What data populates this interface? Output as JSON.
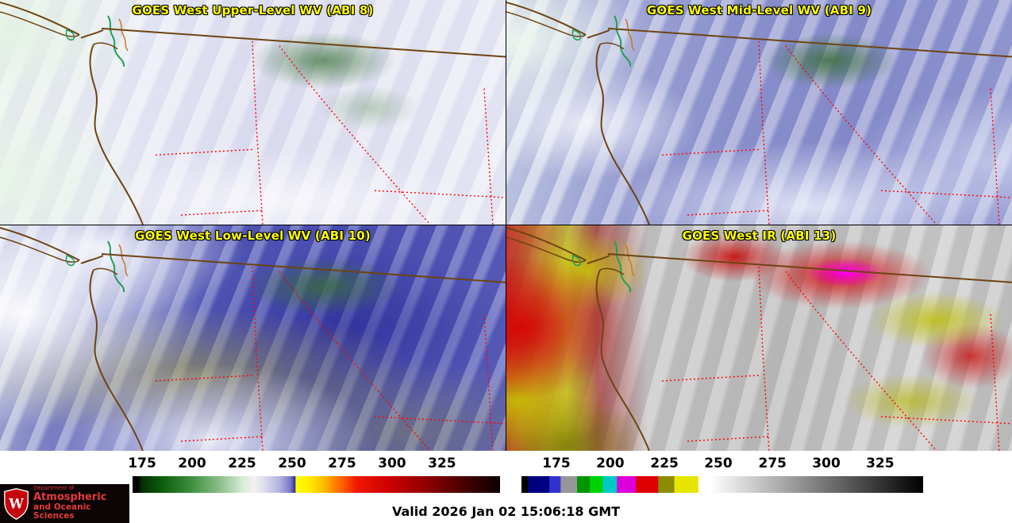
{
  "panels": [
    {
      "title": "GOES West Upper-Level WV (ABI 8)"
    },
    {
      "title": "GOES West Mid-Level WV (ABI 9)"
    },
    {
      "title": "GOES West Low-Level WV (ABI 10)"
    },
    {
      "title": "GOES West IR (ABI 13)"
    }
  ],
  "colors": {
    "panel_title": "#ffff00",
    "coastline": "#6e4412",
    "state_border": "#ff0000",
    "water_detail": "#1f9e5a",
    "logo_background": "#0d0406",
    "logo_text": "#e23b3b",
    "crest_red": "#c5050c"
  },
  "colorbars": {
    "wv": {
      "ticks": [
        {
          "label": "175",
          "pos": 2.6
        },
        {
          "label": "200",
          "pos": 16.2
        },
        {
          "label": "225",
          "pos": 29.8
        },
        {
          "label": "250",
          "pos": 43.4
        },
        {
          "label": "275",
          "pos": 57.0
        },
        {
          "label": "300",
          "pos": 70.6
        },
        {
          "label": "325",
          "pos": 84.2
        }
      ],
      "stops": [
        {
          "p": 0,
          "c": "#000000"
        },
        {
          "p": 1.5,
          "c": "#000000"
        },
        {
          "p": 2.5,
          "c": "#053005"
        },
        {
          "p": 8,
          "c": "#0d5c0d"
        },
        {
          "p": 16,
          "c": "#3f8f3f"
        },
        {
          "p": 24,
          "c": "#8fc08f"
        },
        {
          "p": 30,
          "c": "#d8ecd8"
        },
        {
          "p": 33,
          "c": "#f2f2f2"
        },
        {
          "p": 36,
          "c": "#dcdcee"
        },
        {
          "p": 40,
          "c": "#b2b2de"
        },
        {
          "p": 43,
          "c": "#7878c8"
        },
        {
          "p": 44.3,
          "c": "#2a2a96"
        },
        {
          "p": 44.4,
          "c": "#ffff00"
        },
        {
          "p": 49,
          "c": "#ffe400"
        },
        {
          "p": 53,
          "c": "#ffaa00"
        },
        {
          "p": 57,
          "c": "#ff5f00"
        },
        {
          "p": 61,
          "c": "#f11800"
        },
        {
          "p": 70,
          "c": "#cc0000"
        },
        {
          "p": 79,
          "c": "#960000"
        },
        {
          "p": 88,
          "c": "#550000"
        },
        {
          "p": 97,
          "c": "#1c0000"
        },
        {
          "p": 100,
          "c": "#0d0000"
        }
      ]
    },
    "ir": {
      "ticks": [
        {
          "label": "175",
          "pos": 8.7
        },
        {
          "label": "200",
          "pos": 22.1
        },
        {
          "label": "225",
          "pos": 35.6
        },
        {
          "label": "250",
          "pos": 49.0
        },
        {
          "label": "275",
          "pos": 62.5
        },
        {
          "label": "300",
          "pos": 75.9
        },
        {
          "label": "325",
          "pos": 89.3
        }
      ],
      "stops": [
        {
          "p": 0,
          "c": "#000000"
        },
        {
          "p": 1.6,
          "c": "#000000"
        },
        {
          "p": 1.7,
          "c": "#000082"
        },
        {
          "p": 6.9,
          "c": "#000082"
        },
        {
          "p": 7.0,
          "c": "#3232d2"
        },
        {
          "p": 9.7,
          "c": "#3232d2"
        },
        {
          "p": 9.8,
          "c": "#969696"
        },
        {
          "p": 13.8,
          "c": "#969696"
        },
        {
          "p": 13.9,
          "c": "#009600"
        },
        {
          "p": 17,
          "c": "#009600"
        },
        {
          "p": 17.1,
          "c": "#00d200"
        },
        {
          "p": 20.2,
          "c": "#00d200"
        },
        {
          "p": 20.3,
          "c": "#00c8c8"
        },
        {
          "p": 23.7,
          "c": "#00c8c8"
        },
        {
          "p": 23.8,
          "c": "#dc00dc"
        },
        {
          "p": 28.4,
          "c": "#dc00dc"
        },
        {
          "p": 28.5,
          "c": "#dc0000"
        },
        {
          "p": 34,
          "c": "#dc0000"
        },
        {
          "p": 34.1,
          "c": "#8c8c00"
        },
        {
          "p": 38,
          "c": "#8c8c00"
        },
        {
          "p": 38.1,
          "c": "#e6e600"
        },
        {
          "p": 44,
          "c": "#e6e600"
        },
        {
          "p": 44.1,
          "c": "#ffffff"
        },
        {
          "p": 47,
          "c": "#ffffff"
        },
        {
          "p": 100,
          "c": "#000000"
        }
      ]
    }
  },
  "footer": {
    "valid_time": "Valid 2026 Jan 02 15:06:18 GMT",
    "logo": {
      "line1": "Department of",
      "line2": "Atmospheric",
      "line3": "and Oceanic Sciences",
      "crest_letter": "W"
    }
  }
}
